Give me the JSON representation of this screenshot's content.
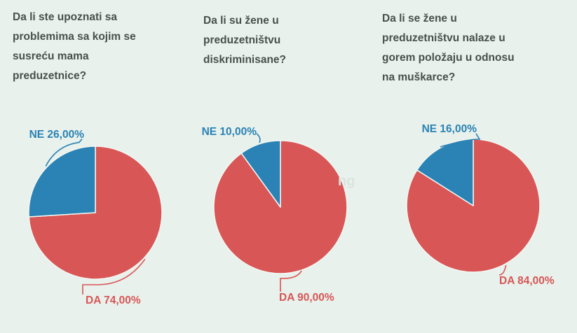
{
  "page": {
    "background_color": "#e8f1eb"
  },
  "watermark": "ng",
  "chart_data": [
    {
      "type": "pie",
      "title": "Da li ste upoznati sa problemima sa kojim se susreću mama preduzetnice?",
      "title_lines": [
        "Da li ste upoznati sa",
        "problemima sa kojim se",
        "susreću mama",
        "preduzetnice?"
      ],
      "labels": [
        "DA",
        "NE"
      ],
      "values": [
        74,
        26
      ],
      "value_labels": [
        "DA 74,00%",
        "NE 26,00%"
      ],
      "colors": [
        "#d85656",
        "#2a82b5"
      ],
      "legend_position": "callout",
      "start_angle_deg": 0,
      "direction": "clockwise"
    },
    {
      "type": "pie",
      "title": "Da li su žene u preduzetništvu diskriminisane?",
      "title_lines": [
        "Da li su žene u",
        "preduzetništvu",
        "diskriminisane?"
      ],
      "labels": [
        "DA",
        "NE"
      ],
      "values": [
        90,
        10
      ],
      "value_labels": [
        "DA 90,00%",
        "NE 10,00%"
      ],
      "colors": [
        "#d85656",
        "#2a82b5"
      ],
      "legend_position": "callout",
      "start_angle_deg": 0,
      "direction": "clockwise"
    },
    {
      "type": "pie",
      "title": "Da li se žene u preduzetništvu nalaze u gorem položaju u odnosu na muškarce?",
      "title_lines": [
        "Da li se žene u",
        "preduzetništvu nalaze u",
        "gorem položaju u odnosu",
        "na muškarce?"
      ],
      "labels": [
        "DA",
        "NE"
      ],
      "values": [
        84,
        16
      ],
      "value_labels": [
        "DA 84,00%",
        "NE 16,00%"
      ],
      "colors": [
        "#d85656",
        "#2a82b5"
      ],
      "legend_position": "callout",
      "start_angle_deg": 0,
      "direction": "clockwise"
    }
  ]
}
